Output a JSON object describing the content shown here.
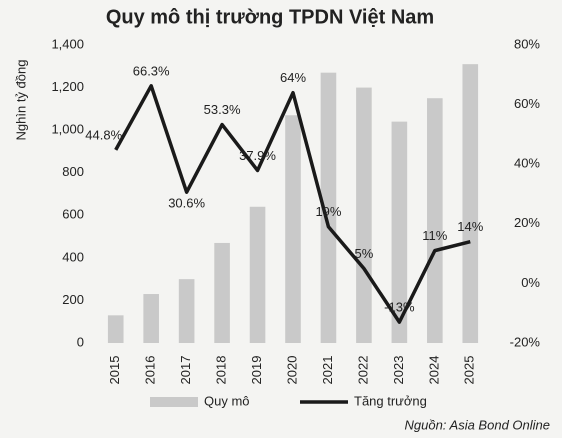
{
  "chart_data": {
    "type": "bar_line",
    "title": "Quy mô thị trường TPDN Việt Nam",
    "y_label": "Nghìn tỷ đồng",
    "source": "Nguồn: Asia Bond Online",
    "categories": [
      "2015",
      "2016",
      "2017",
      "2018",
      "2019",
      "2020",
      "2021",
      "2022",
      "2023",
      "2024",
      "2025"
    ],
    "series": [
      {
        "name": "Quy mô",
        "type": "bar",
        "color": "#c9c9c9",
        "values": [
          130,
          230,
          300,
          470,
          640,
          1070,
          1270,
          1200,
          1040,
          1150,
          1310
        ]
      },
      {
        "name": "Tăng trưởng",
        "type": "line",
        "axis": "y2",
        "color": "#1a1a1a",
        "values": [
          44.8,
          66.3,
          30.6,
          53.3,
          37.9,
          64,
          19,
          5,
          -13,
          11,
          14
        ],
        "value_labels": [
          "44.8%",
          "66.3%",
          "30.6%",
          "53.3%",
          "37.9%",
          "64%",
          "19%",
          "5%",
          "-13%",
          "11%",
          "14%"
        ]
      }
    ],
    "ylim": [
      0,
      1400
    ],
    "yticks": [
      0,
      200,
      400,
      600,
      800,
      {
        "value": 1000,
        "label": "1,000"
      },
      {
        "value": 1200,
        "label": "1,200"
      },
      {
        "value": 1400,
        "label": "1,400"
      }
    ],
    "y2lim": [
      -20,
      80
    ],
    "y2ticks": [
      {
        "value": -20,
        "label": "-20%"
      },
      {
        "value": 0,
        "label": "0%"
      },
      {
        "value": 20,
        "label": "20%"
      },
      {
        "value": 40,
        "label": "40%"
      },
      {
        "value": 60,
        "label": "60%"
      },
      {
        "value": 80,
        "label": "80%"
      }
    ],
    "legend": "bottom"
  }
}
